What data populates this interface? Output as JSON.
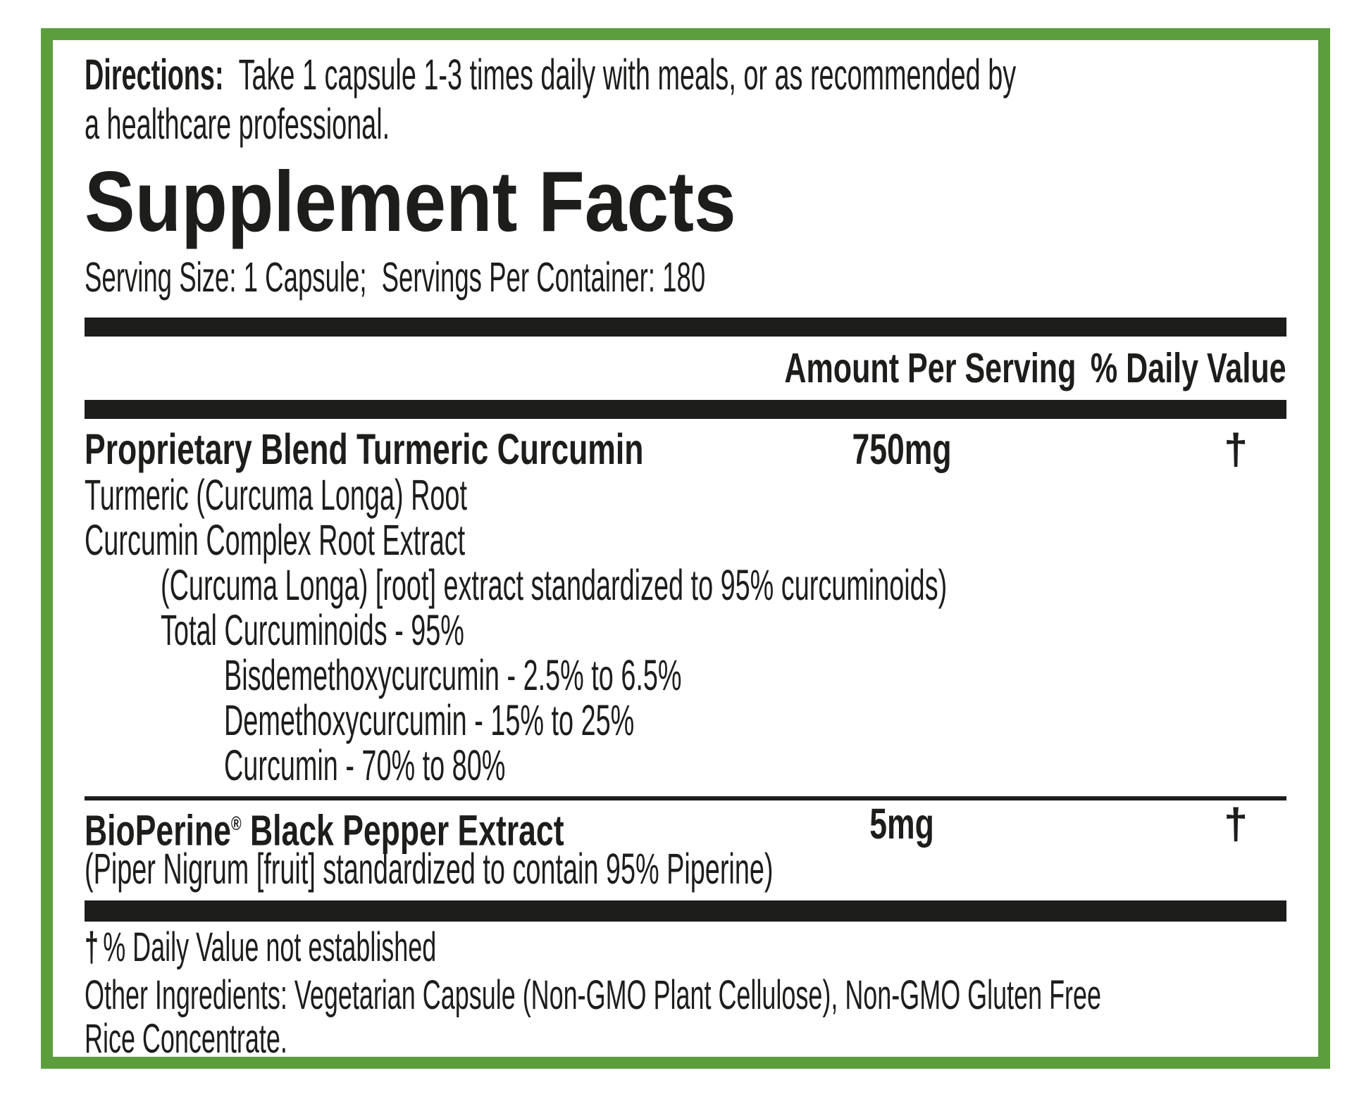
{
  "colors": {
    "border_green": "#5c9e3e",
    "ink": "#1d1d1b"
  },
  "directions": {
    "lead": "Directions:",
    "line1_rest": "Take 1 capsule 1-3 times daily with meals, or as recommended by",
    "line2": "a healthcare professional."
  },
  "title": "Supplement Facts",
  "serving": {
    "size": "Serving Size: 1 Capsule;",
    "per_container": "Servings Per Container: 180"
  },
  "table": {
    "header": {
      "amount": "Amount Per Serving",
      "daily_value": "% Daily Value"
    },
    "proprietary_row": {
      "name": "Proprietary Blend Turmeric Curcumin",
      "amount": "750mg",
      "daily_value": "†"
    },
    "blend_lines": [
      "Turmeric (Curcuma Longa) Root",
      "Curcumin Complex Root Extract",
      "(Curcuma Longa) [root] extract standardized to 95% curcuminoids)",
      "Total Curcuminoids - 95%",
      "Bisdemethoxycurcumin - 2.5% to 6.5%",
      "Demethoxycurcumin - 15% to 25%",
      "Curcumin - 70% to 80%"
    ],
    "bioperine_row": {
      "brand": "BioPerine",
      "registered_mark": "®",
      "name_rest": " Black Pepper Extract",
      "amount": "5mg",
      "daily_value": "†",
      "subline": "(Piper Nigrum [fruit] standardized to contain 95% Piperine)"
    }
  },
  "footnotes": {
    "dagger": "†",
    "daily_value_note": "% Daily Value not established",
    "other_ingredients_line1": "Other Ingredients: Vegetarian Capsule (Non-GMO Plant Cellulose), Non-GMO Gluten Free",
    "other_ingredients_line2": "Rice Concentrate."
  }
}
